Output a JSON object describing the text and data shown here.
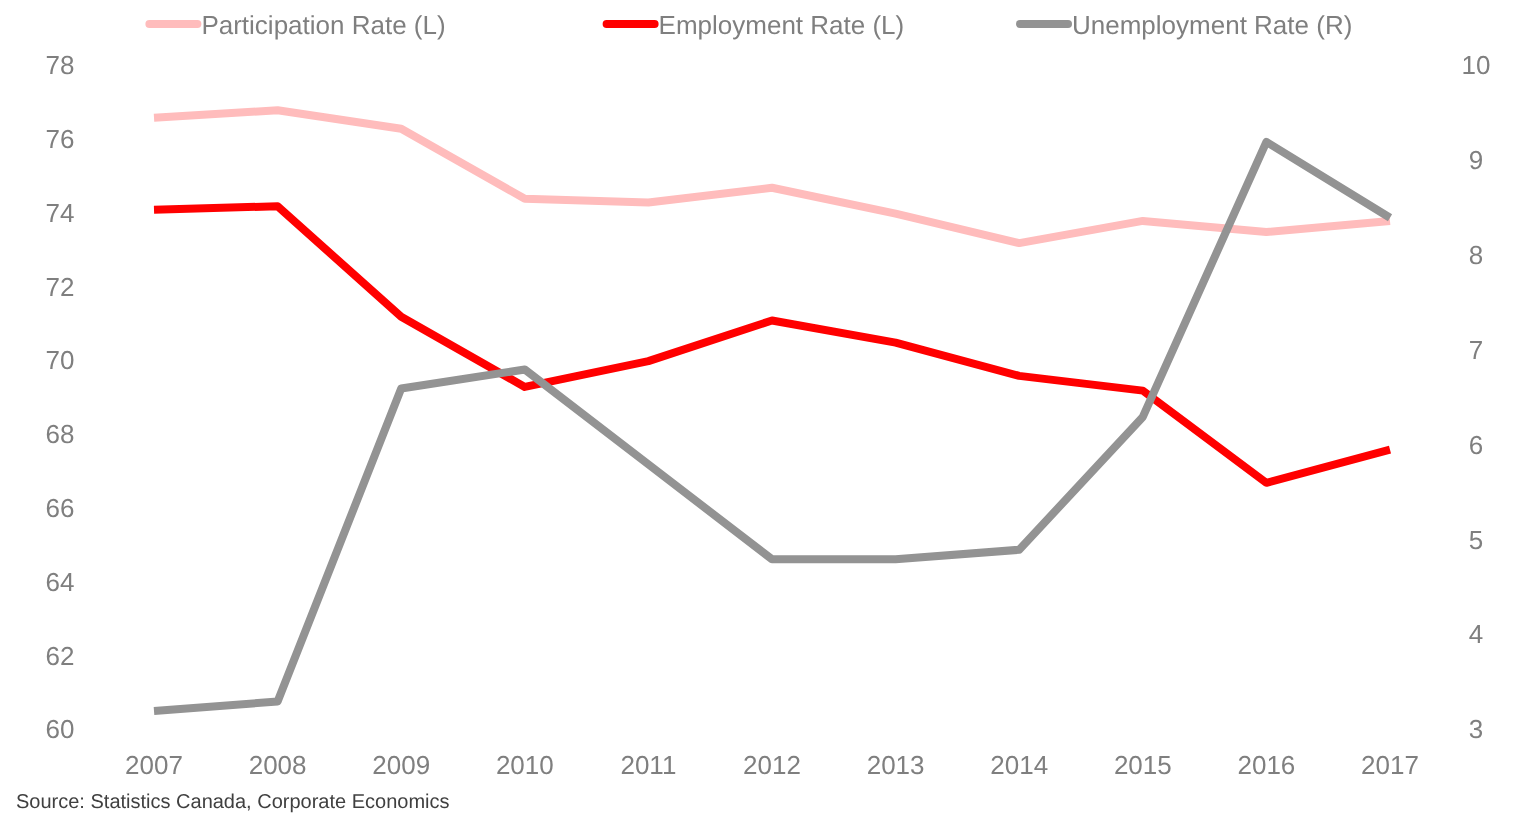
{
  "chart_data": {
    "type": "line",
    "categories": [
      "2007",
      "2008",
      "2009",
      "2010",
      "2011",
      "2012",
      "2013",
      "2014",
      "2015",
      "2016",
      "2017"
    ],
    "series": [
      {
        "name": "Participation Rate (L)",
        "color": "#ffbcbc",
        "values": [
          76.6,
          76.8,
          76.3,
          74.4,
          74.3,
          74.7,
          74.0,
          73.2,
          73.8,
          73.5,
          73.8
        ]
      },
      {
        "name": "Employment Rate (L)",
        "color": "#ff0000",
        "values": [
          74.1,
          74.2,
          71.2,
          69.3,
          70.0,
          71.1,
          70.5,
          69.6,
          69.2,
          66.7,
          67.6
        ]
      },
      {
        "name": "Unemployment Rate (R)",
        "color": "#939393",
        "axis": "y2",
        "values": [
          3.2,
          3.3,
          6.6,
          6.8,
          5.8,
          4.8,
          4.8,
          4.9,
          6.3,
          9.2,
          8.4
        ]
      }
    ],
    "ylim": [
      60,
      78
    ],
    "yticks": [
      60,
      62,
      64,
      66,
      68,
      70,
      72,
      74,
      76,
      78
    ],
    "y2lim": [
      3,
      10
    ],
    "y2ticks": [
      3,
      4,
      5,
      6,
      7,
      8,
      9,
      10
    ],
    "legend": "top",
    "grid": false,
    "marker": "none",
    "line_style": "solid",
    "annotations": [
      "Source: Statistics Canada, Corporate Economics"
    ]
  }
}
